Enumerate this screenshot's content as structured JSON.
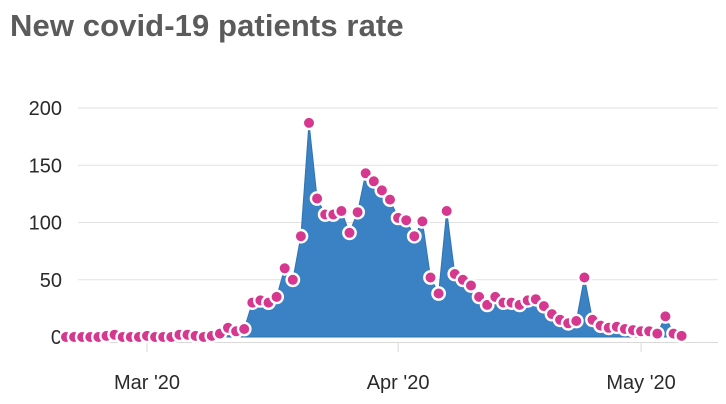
{
  "title": "New covid-19 patients rate",
  "colors": {
    "area": "#3a82c4",
    "area_edge": "#2f74b2",
    "marker_fill": "#d6378f",
    "marker_stroke": "#ffffff",
    "grid": "#e2e2e2",
    "axis": "#d9d9d9",
    "text": "#2a2a2a",
    "title": "#5b5b5b"
  },
  "chart_data": {
    "type": "area",
    "title": "New covid-19 patients rate",
    "x_unit": "date",
    "x": [
      "2020-02-20",
      "2020-02-21",
      "2020-02-22",
      "2020-02-23",
      "2020-02-24",
      "2020-02-25",
      "2020-02-26",
      "2020-02-27",
      "2020-02-28",
      "2020-02-29",
      "2020-03-01",
      "2020-03-02",
      "2020-03-03",
      "2020-03-04",
      "2020-03-05",
      "2020-03-06",
      "2020-03-07",
      "2020-03-08",
      "2020-03-09",
      "2020-03-10",
      "2020-03-11",
      "2020-03-12",
      "2020-03-13",
      "2020-03-14",
      "2020-03-15",
      "2020-03-16",
      "2020-03-17",
      "2020-03-18",
      "2020-03-19",
      "2020-03-20",
      "2020-03-21",
      "2020-03-22",
      "2020-03-23",
      "2020-03-24",
      "2020-03-25",
      "2020-03-26",
      "2020-03-27",
      "2020-03-28",
      "2020-03-29",
      "2020-03-30",
      "2020-03-31",
      "2020-04-01",
      "2020-04-02",
      "2020-04-03",
      "2020-04-04",
      "2020-04-05",
      "2020-04-06",
      "2020-04-07",
      "2020-04-08",
      "2020-04-09",
      "2020-04-10",
      "2020-04-11",
      "2020-04-12",
      "2020-04-13",
      "2020-04-14",
      "2020-04-15",
      "2020-04-16",
      "2020-04-17",
      "2020-04-18",
      "2020-04-19",
      "2020-04-20",
      "2020-04-21",
      "2020-04-22",
      "2020-04-23",
      "2020-04-24",
      "2020-04-25",
      "2020-04-26",
      "2020-04-27",
      "2020-04-28",
      "2020-04-29",
      "2020-04-30",
      "2020-05-01",
      "2020-05-02",
      "2020-05-03",
      "2020-05-04",
      "2020-05-05",
      "2020-05-06"
    ],
    "series": [
      {
        "values": [
          0,
          0,
          0,
          0,
          0,
          1,
          2,
          0,
          0,
          0,
          1,
          0,
          0,
          0,
          2,
          2,
          1,
          0,
          1,
          3,
          8,
          5,
          7,
          30,
          32,
          30,
          35,
          60,
          50,
          88,
          187,
          121,
          107,
          107,
          110,
          91,
          109,
          143,
          136,
          128,
          120,
          104,
          102,
          88,
          101,
          52,
          38,
          110,
          55,
          50,
          45,
          35,
          28,
          35,
          30,
          30,
          28,
          32,
          33,
          27,
          20,
          15,
          12,
          14,
          52,
          15,
          10,
          8,
          9,
          7,
          6,
          5,
          5,
          3,
          18,
          3,
          1
        ]
      }
    ],
    "xticks": [
      {
        "date": "2020-03-01",
        "label": "Mar '20"
      },
      {
        "date": "2020-04-01",
        "label": "Apr '20"
      },
      {
        "date": "2020-05-01",
        "label": "May '20"
      }
    ],
    "yticks": [
      0,
      50,
      100,
      150,
      200
    ],
    "ylim": [
      0,
      200
    ],
    "grid": true,
    "legend": false
  }
}
